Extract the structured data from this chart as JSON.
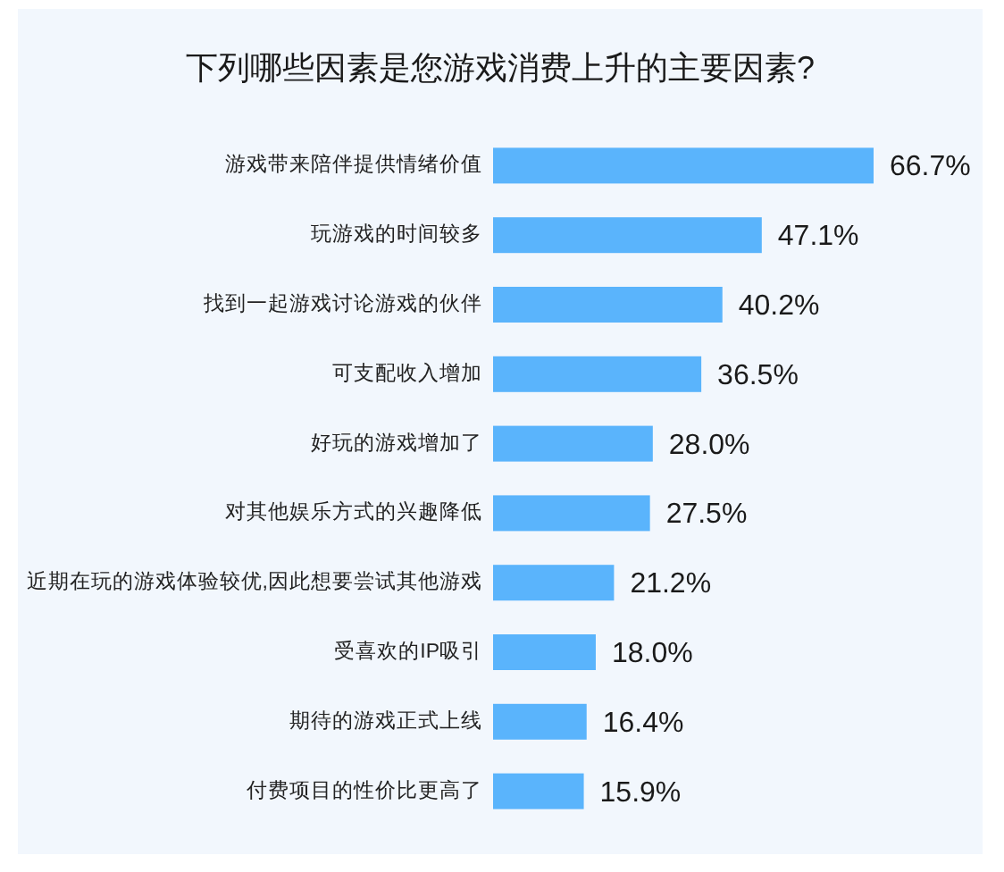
{
  "chart_data": {
    "type": "bar",
    "orientation": "horizontal",
    "title": "下列哪些因素是您游戏消费上升的主要因素?",
    "categories": [
      "游戏带来陪伴提供情绪价值",
      "玩游戏的时间较多",
      "找到一起游戏讨论游戏的伙伴",
      "可支配收入增加",
      "好玩的游戏增加了",
      "对其他娱乐方式的兴趣降低",
      "近期在玩的游戏体验较优,因此想要尝试其他游戏",
      "受喜欢的IP吸引",
      "期待的游戏正式上线",
      "付费项目的性价比更高了"
    ],
    "values": [
      66.7,
      47.1,
      40.2,
      36.5,
      28.0,
      27.5,
      21.2,
      18.0,
      16.4,
      15.9
    ],
    "color": "#5ab4fc",
    "value_labels": [
      "66.7%",
      "47.1%",
      "40.2%",
      "36.5%",
      "28.0%",
      "27.5%",
      "21.2%",
      "18.0%",
      "16.4%",
      "15.9%"
    ],
    "tick_labels": "y"
  }
}
